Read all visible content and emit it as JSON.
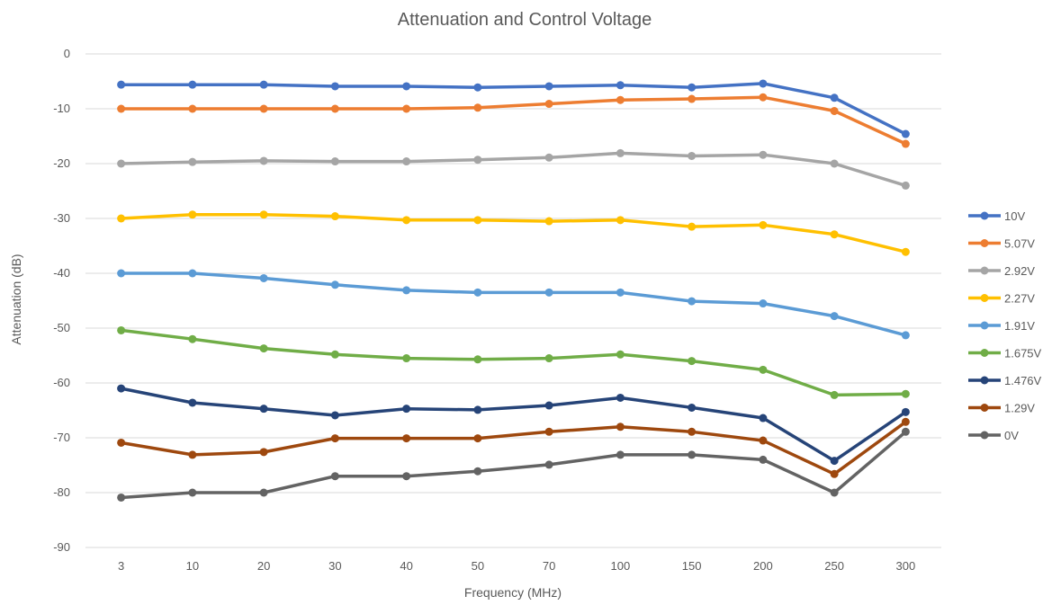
{
  "chart_data": {
    "type": "line",
    "title": "Attenuation and Control Voltage",
    "xlabel": "Frequency (MHz)",
    "ylabel": "Attenuation (dB)",
    "categories": [
      "3",
      "10",
      "20",
      "30",
      "40",
      "50",
      "70",
      "100",
      "150",
      "200",
      "250",
      "300"
    ],
    "ylim": [
      -90,
      0
    ],
    "yticks": [
      0,
      -10,
      -20,
      -30,
      -40,
      -50,
      -60,
      -70,
      -80,
      -90
    ],
    "grid": "horizontal",
    "legend_position": "right",
    "series": [
      {
        "name": "10V",
        "color": "#4472c4",
        "values": [
          -5.6,
          -5.6,
          -5.6,
          -5.9,
          -5.9,
          -6.1,
          -5.9,
          -5.7,
          -6.1,
          -5.4,
          -8.0,
          -14.6
        ]
      },
      {
        "name": "5.07V",
        "color": "#ed7d31",
        "values": [
          -10.0,
          -10.0,
          -10.0,
          -10.0,
          -10.0,
          -9.8,
          -9.1,
          -8.4,
          -8.2,
          -7.9,
          -10.4,
          -16.4
        ]
      },
      {
        "name": "2.92V",
        "color": "#a5a5a5",
        "values": [
          -20.0,
          -19.7,
          -19.5,
          -19.6,
          -19.6,
          -19.3,
          -18.9,
          -18.1,
          -18.6,
          -18.4,
          -20.0,
          -24.0
        ]
      },
      {
        "name": "2.27V",
        "color": "#ffc000",
        "values": [
          -30.0,
          -29.3,
          -29.3,
          -29.6,
          -30.3,
          -30.3,
          -30.5,
          -30.3,
          -31.5,
          -31.2,
          -32.9,
          -36.1
        ]
      },
      {
        "name": "1.91V",
        "color": "#5b9bd5",
        "values": [
          -40.0,
          -40.0,
          -40.9,
          -42.1,
          -43.1,
          -43.5,
          -43.5,
          -43.5,
          -45.1,
          -45.5,
          -47.8,
          -51.3
        ]
      },
      {
        "name": "1.675V",
        "color": "#70ad47",
        "values": [
          -50.4,
          -52.0,
          -53.7,
          -54.8,
          -55.5,
          -55.7,
          -55.5,
          -54.8,
          -56.0,
          -57.6,
          -62.2,
          -62.0
        ]
      },
      {
        "name": "1.476V",
        "color": "#264478",
        "values": [
          -61.0,
          -63.6,
          -64.7,
          -65.9,
          -64.7,
          -64.9,
          -64.1,
          -62.7,
          -64.5,
          -66.4,
          -74.2,
          -65.3
        ]
      },
      {
        "name": "1.29V",
        "color": "#9e480e",
        "values": [
          -70.9,
          -73.1,
          -72.6,
          -70.1,
          -70.1,
          -70.1,
          -68.9,
          -68.0,
          -68.9,
          -70.5,
          -76.6,
          -67.1
        ]
      },
      {
        "name": "0V",
        "color": "#636363",
        "values": [
          -80.9,
          -80.0,
          -80.0,
          -77.0,
          -77.0,
          -76.1,
          -74.9,
          -73.1,
          -73.1,
          -74.0,
          -80.0,
          -68.9
        ]
      }
    ]
  }
}
